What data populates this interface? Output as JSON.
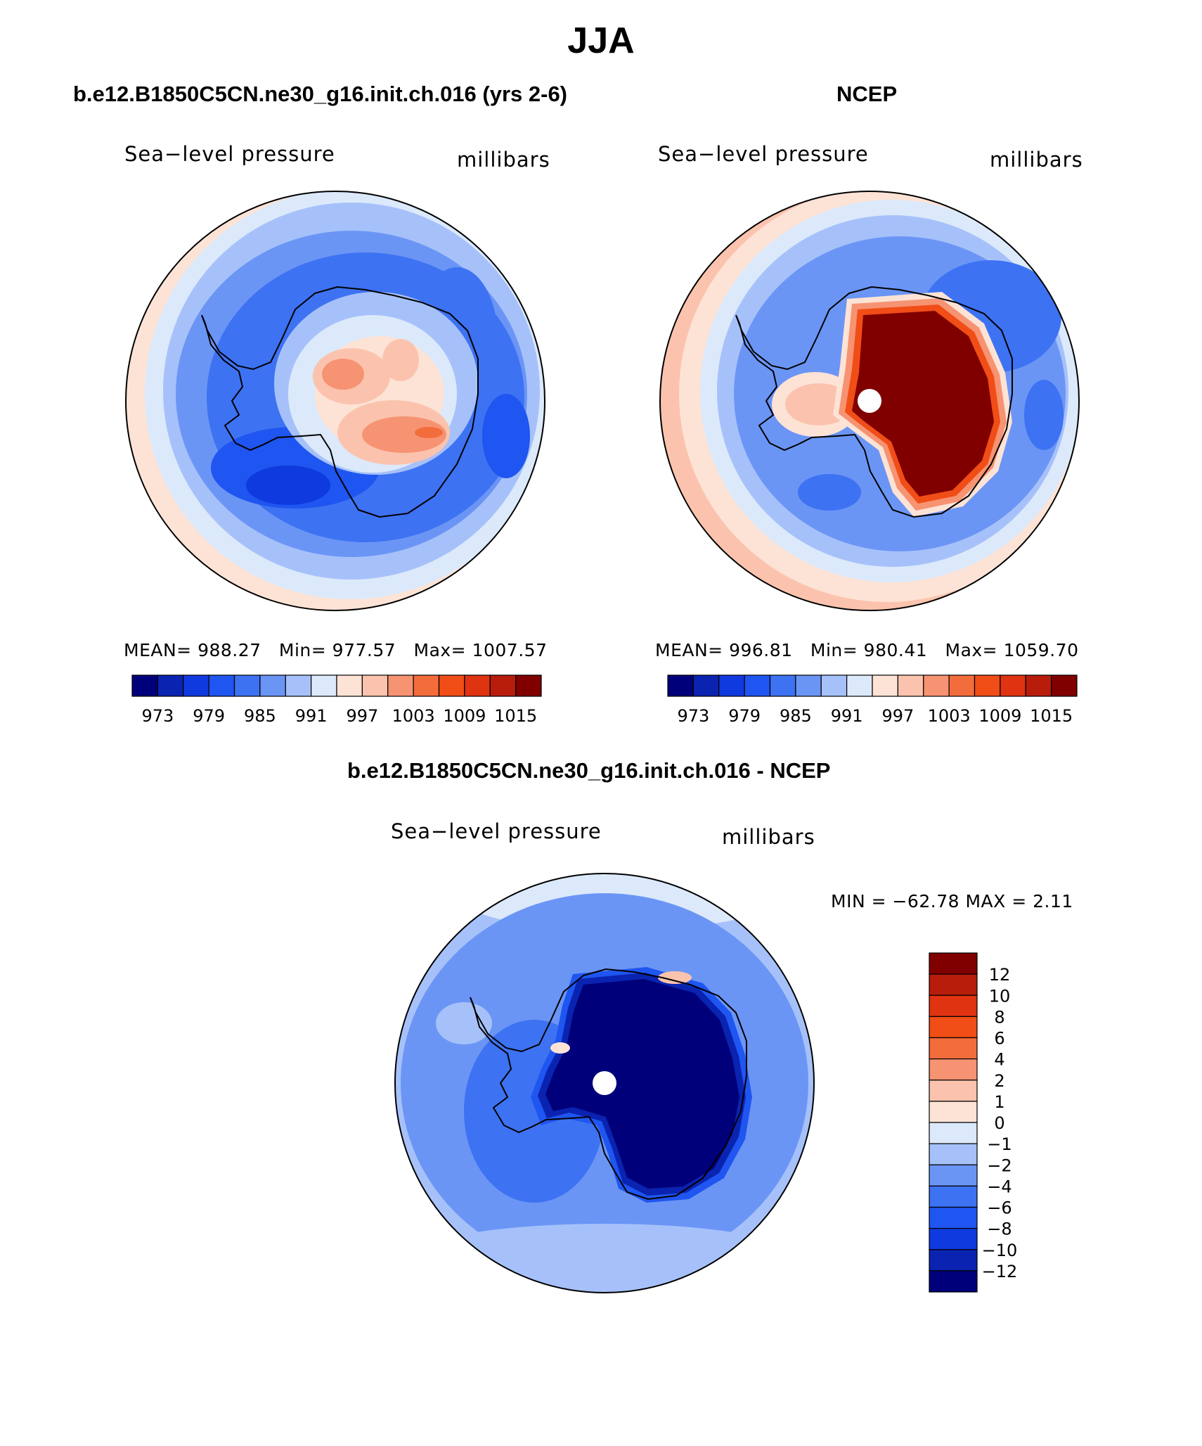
{
  "figure": {
    "title": "JJA"
  },
  "panels": {
    "left": {
      "title": "b.e12.B1850C5CN.ne30_g16.init.ch.016 (yrs 2-6)",
      "variable": "Sea−level pressure",
      "units": "millibars",
      "stats": {
        "mean_label": "MEAN=",
        "mean": "988.27",
        "min_label": "Min=",
        "min": "977.57",
        "max_label": "Max=",
        "max": "1007.57"
      }
    },
    "right": {
      "title": "NCEP",
      "variable": "Sea−level pressure",
      "units": "millibars",
      "stats": {
        "mean_label": "MEAN=",
        "mean": "996.81",
        "min_label": "Min=",
        "min": "980.41",
        "max_label": "Max=",
        "max": "1059.70"
      }
    },
    "diff": {
      "title": "b.e12.B1850C5CN.ne30_g16.init.ch.016 - NCEP",
      "variable": "Sea−level pressure",
      "units": "millibars",
      "minmax_text": "MIN = −62.78 MAX =    2.11"
    }
  },
  "chart_data": [
    {
      "type": "colorbar",
      "name": "absolute sea-level pressure colorbar",
      "tick_labels": [
        "973",
        "979",
        "985",
        "991",
        "997",
        "1003",
        "1009",
        "1015"
      ],
      "colors": [
        "#00007a",
        "#0a23b0",
        "#0f3ae0",
        "#1f55f0",
        "#3d72f2",
        "#6b95f5",
        "#a6c1fa",
        "#dbe9fb",
        "#fde3d6",
        "#fbc3ad",
        "#f69372",
        "#f36c3c",
        "#f14d17",
        "#e03311",
        "#b81d0c",
        "#800000"
      ]
    },
    {
      "type": "colorbar",
      "name": "difference colorbar",
      "tick_labels": [
        "12",
        "10",
        "8",
        "6",
        "4",
        "2",
        "1",
        "0",
        "−1",
        "−2",
        "−4",
        "−6",
        "−8",
        "−10",
        "−12"
      ],
      "colors": [
        "#800000",
        "#b81d0c",
        "#e03311",
        "#f14d17",
        "#f36c3c",
        "#f69372",
        "#fbc3ad",
        "#fde3d6",
        "#dbe9fb",
        "#a6c1fa",
        "#6b95f5",
        "#3d72f2",
        "#1f55f0",
        "#0f3ae0",
        "#0a23b0",
        "#00007a"
      ]
    },
    {
      "type": "heatmap",
      "name": "polar sea-level pressure maps",
      "projection": "south polar stereographic",
      "panels": [
        "model",
        "NCEP",
        "model - NCEP"
      ]
    }
  ]
}
